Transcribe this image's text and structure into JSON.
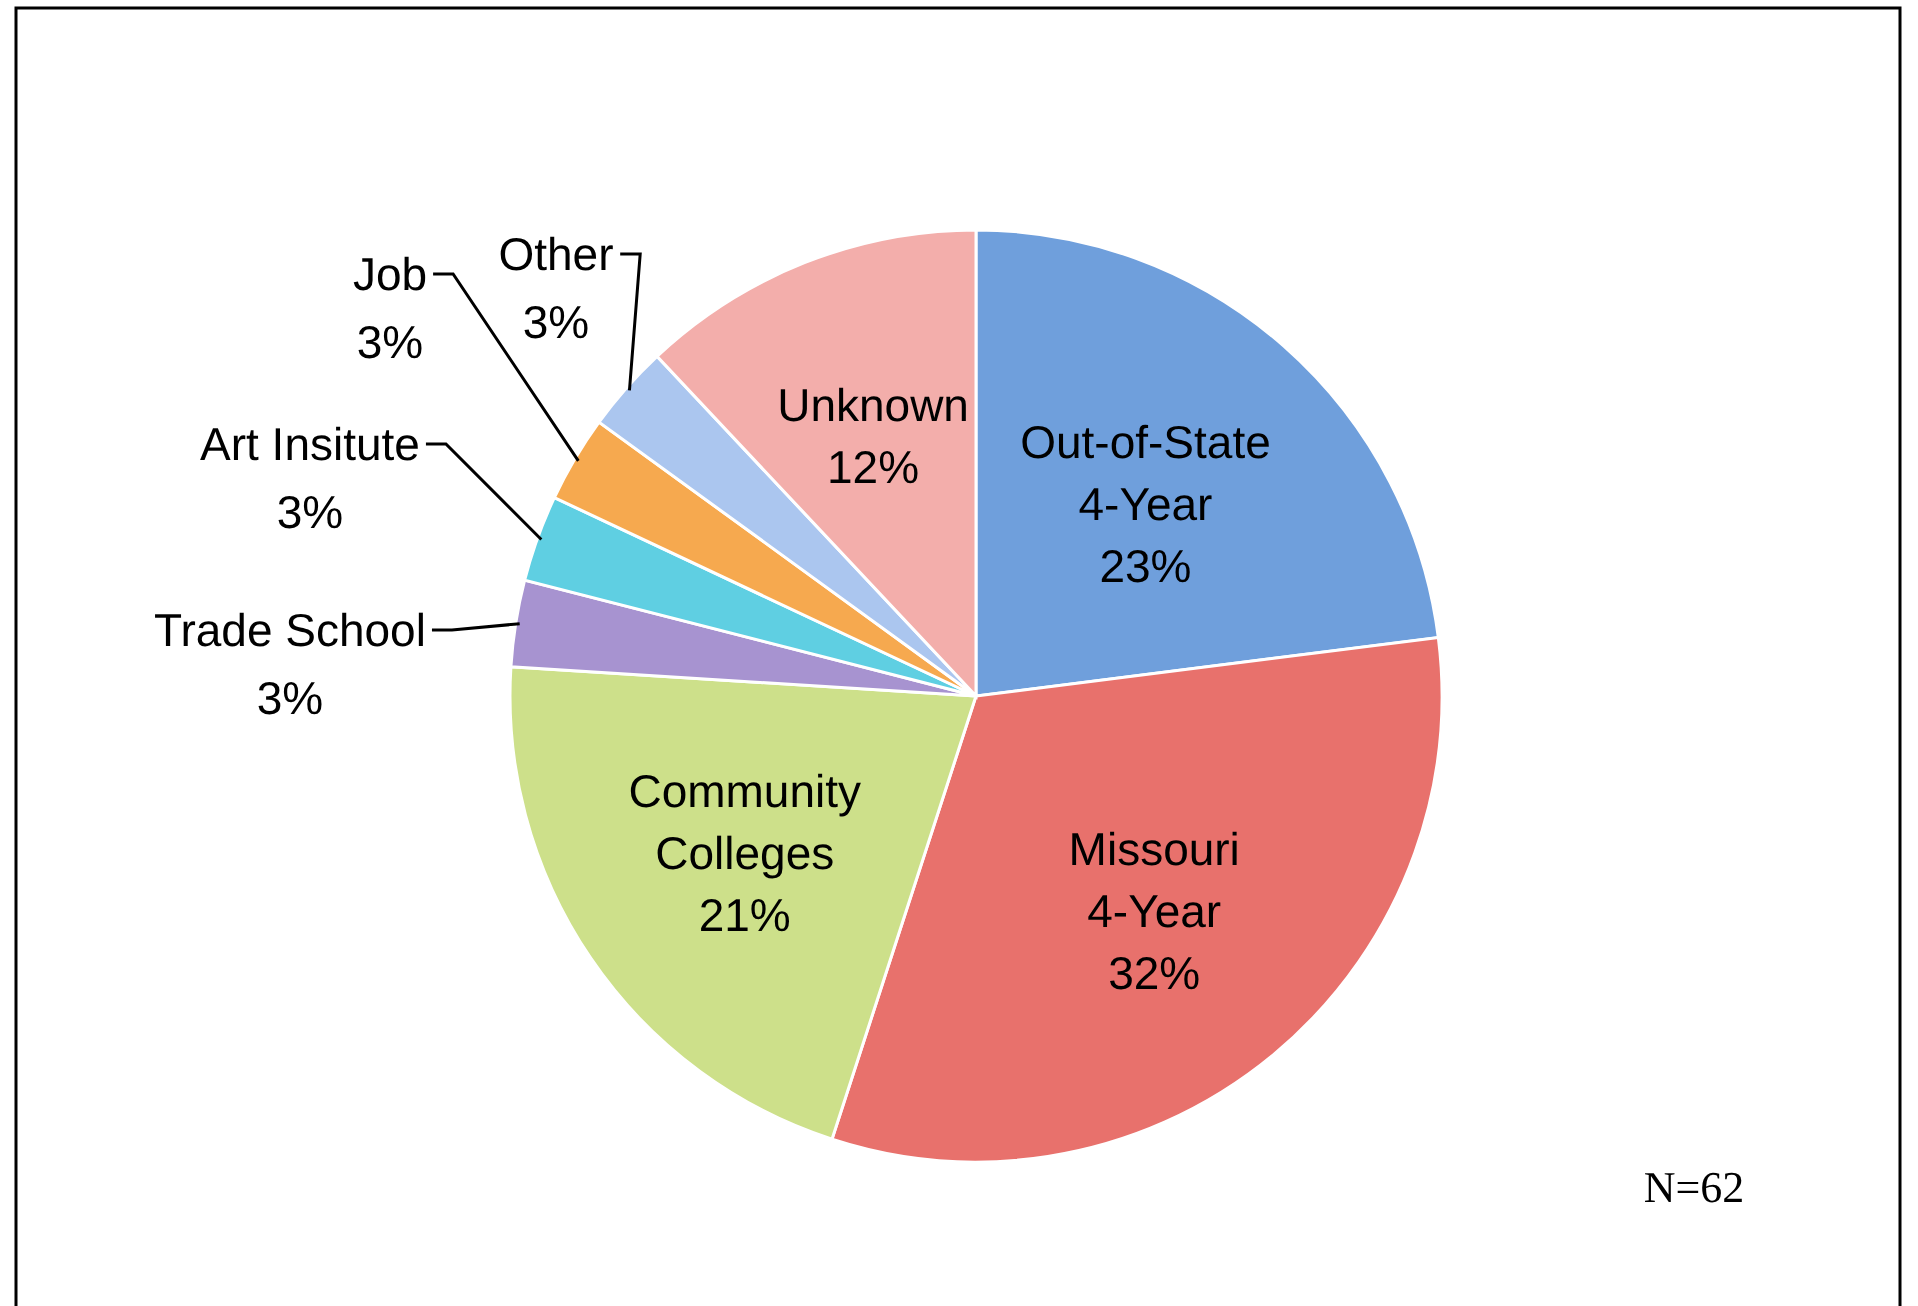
{
  "chart_data": {
    "type": "pie",
    "categories": [
      "Out-of-State 4-Year",
      "Missouri 4-Year",
      "Community Colleges",
      "Trade School",
      "Art Insitute",
      "Job",
      "Other",
      "Unknown"
    ],
    "values": [
      23,
      32,
      21,
      3,
      3,
      3,
      3,
      12
    ],
    "value_labels": [
      "23%",
      "32%",
      "21%",
      "3%",
      "3%",
      "3%",
      "3%",
      "12%"
    ],
    "colors": [
      "#6f9fdc",
      "#e8716c",
      "#cde08a",
      "#a793d0",
      "#5fcfe2",
      "#f6a94f",
      "#abc6ef",
      "#f3aeab"
    ],
    "annotations": [
      "N=62"
    ]
  }
}
